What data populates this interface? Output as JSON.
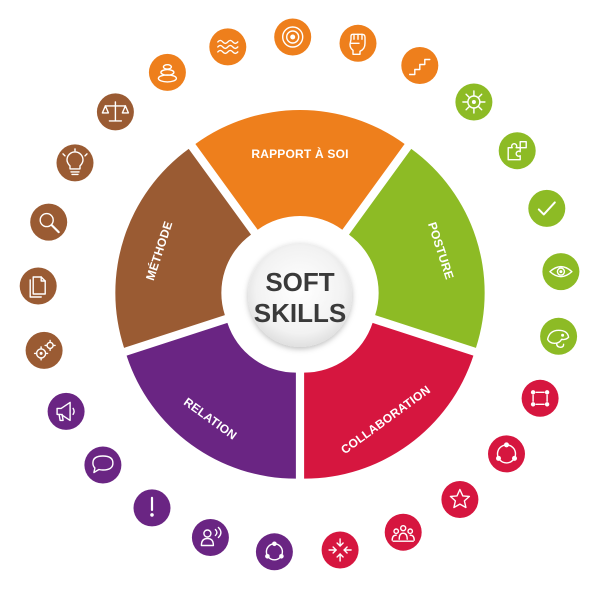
{
  "center": {
    "line1": "SOFT",
    "line2": "SKILLS"
  },
  "segments": [
    {
      "key": "rapport",
      "label": "RAPPORT À SOI",
      "color": "#ee7f1c"
    },
    {
      "key": "posture",
      "label": "POSTURE",
      "color": "#8dbb25"
    },
    {
      "key": "collaboration",
      "label": "COLLABORATION",
      "color": "#d6163f"
    },
    {
      "key": "relation",
      "label": "RELATION",
      "color": "#6a2583"
    },
    {
      "key": "methode",
      "label": "MÉTHODE",
      "color": "#9a5b33"
    }
  ],
  "icons": [
    {
      "name": "stones-icon",
      "color": "#ee7f1c"
    },
    {
      "name": "waves-icon",
      "color": "#ee7f1c"
    },
    {
      "name": "target-icon",
      "color": "#ee7f1c"
    },
    {
      "name": "fist-icon",
      "color": "#ee7f1c"
    },
    {
      "name": "stairs-icon",
      "color": "#ee7f1c"
    },
    {
      "name": "helm-icon",
      "color": "#8dbb25"
    },
    {
      "name": "puzzle-icon",
      "color": "#8dbb25"
    },
    {
      "name": "check-icon",
      "color": "#8dbb25"
    },
    {
      "name": "eye-icon",
      "color": "#8dbb25"
    },
    {
      "name": "chameleon-icon",
      "color": "#8dbb25"
    },
    {
      "name": "network-icon",
      "color": "#d6163f"
    },
    {
      "name": "team-circle-icon",
      "color": "#d6163f"
    },
    {
      "name": "star-icon",
      "color": "#d6163f"
    },
    {
      "name": "group-icon",
      "color": "#d6163f"
    },
    {
      "name": "arrows-inward-icon",
      "color": "#d6163f"
    },
    {
      "name": "people-cycle-icon",
      "color": "#6a2583"
    },
    {
      "name": "speaker-person-icon",
      "color": "#6a2583"
    },
    {
      "name": "exclamation-icon",
      "color": "#6a2583"
    },
    {
      "name": "speech-bubble-icon",
      "color": "#6a2583"
    },
    {
      "name": "megaphone-icon",
      "color": "#6a2583"
    },
    {
      "name": "gears-icon",
      "color": "#9a5b33"
    },
    {
      "name": "documents-icon",
      "color": "#9a5b33"
    },
    {
      "name": "magnifier-icon",
      "color": "#9a5b33"
    },
    {
      "name": "lightbulb-icon",
      "color": "#9a5b33"
    },
    {
      "name": "scales-icon",
      "color": "#9a5b33"
    }
  ]
}
